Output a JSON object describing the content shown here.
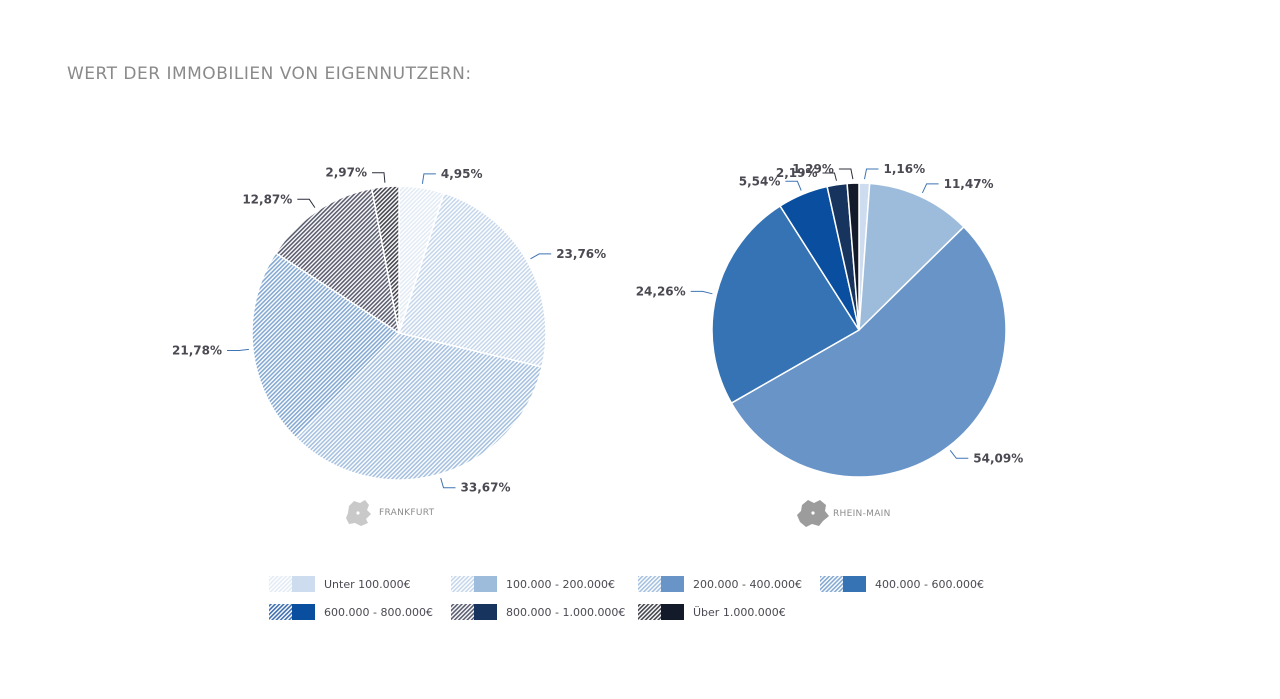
{
  "page": {
    "title": "WERT DER IMMOBILIEN VON EIGENNUTZERN:"
  },
  "colors": {
    "cat_light": [
      "#e3ebf5",
      "#c6d7ec",
      "#a6c1e0",
      "#84a9d2",
      "#3f6fb0",
      "#5b5e70",
      "#45464f"
    ],
    "cat_solid": [
      "#cddcef",
      "#9dbcdc",
      "#6894c8",
      "#3573b5",
      "#0a4e9f",
      "#16345e",
      "#131b2b"
    ],
    "line": "#3f74b3",
    "label": "#4a4a52",
    "muted": "#8a8a8a"
  },
  "chart_data": [
    {
      "type": "pie",
      "region": "FRANKFURT",
      "style": "hatched",
      "slices": [
        {
          "category": "Unter 100.000€",
          "value": 4.95,
          "label": "4,95%"
        },
        {
          "category": "100.000 - 200.000€",
          "value": 23.76,
          "label": "23,76%"
        },
        {
          "category": "200.000 - 400.000€",
          "value": 33.67,
          "label": "33,67%"
        },
        {
          "category": "400.000 - 600.000€",
          "value": 21.78,
          "label": "21,78%"
        },
        {
          "category": "800.000 - 1.000.000€",
          "value": 12.87,
          "label": "12,87%"
        },
        {
          "category": "Über 1.000.000€",
          "value": 2.97,
          "label": "2,97%"
        }
      ]
    },
    {
      "type": "pie",
      "region": "RHEIN-MAIN",
      "style": "solid",
      "slices": [
        {
          "category": "Unter 100.000€",
          "value": 1.16,
          "label": "1,16%"
        },
        {
          "category": "100.000 - 200.000€",
          "value": 11.47,
          "label": "11,47%"
        },
        {
          "category": "200.000 - 400.000€",
          "value": 54.09,
          "label": "54,09%"
        },
        {
          "category": "400.000 - 600.000€",
          "value": 24.26,
          "label": "24,26%"
        },
        {
          "category": "600.000 - 800.000€",
          "value": 5.54,
          "label": "5,54%"
        },
        {
          "category": "800.000 - 1.000.000€",
          "value": 2.19,
          "label": "2,19%"
        },
        {
          "category": "Über 1.000.000€",
          "value": 1.29,
          "label": "1,29%"
        }
      ]
    }
  ],
  "legend": [
    "Unter 100.000€",
    "100.000 - 200.000€",
    "200.000 - 400.000€",
    "400.000 - 600.000€",
    "600.000 - 800.000€",
    "800.000 - 1.000.000€",
    "Über 1.000.000€"
  ]
}
